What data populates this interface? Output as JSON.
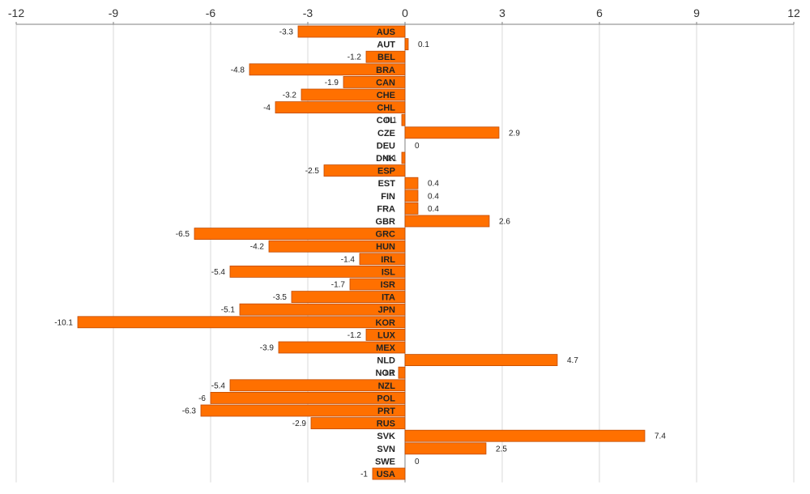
{
  "chart_data": {
    "type": "bar",
    "orientation": "horizontal",
    "xlim": [
      -12,
      12
    ],
    "ticks": [
      -12,
      -9,
      -6,
      -3,
      0,
      3,
      6,
      9,
      12
    ],
    "tick_labels": [
      "-12",
      "-9",
      "-6",
      "-3",
      "0",
      "3",
      "6",
      "9",
      "12"
    ],
    "axis_position": "top",
    "grid": true,
    "categories": [
      "AUS",
      "AUT",
      "BEL",
      "BRA",
      "CAN",
      "CHE",
      "CHL",
      "COL",
      "CZE",
      "DEU",
      "DNK",
      "ESP",
      "EST",
      "FIN",
      "FRA",
      "GBR",
      "GRC",
      "HUN",
      "IRL",
      "ISL",
      "ISR",
      "ITA",
      "JPN",
      "KOR",
      "LUX",
      "MEX",
      "NLD",
      "NOR",
      "NZL",
      "POL",
      "PRT",
      "RUS",
      "SVK",
      "SVN",
      "SWE",
      "USA"
    ],
    "values": [
      -3.3,
      0.1,
      -1.2,
      -4.8,
      -1.9,
      -3.2,
      -4,
      -0.1,
      2.9,
      0,
      -0.1,
      -2.5,
      0.4,
      0.4,
      0.4,
      2.6,
      -6.5,
      -4.2,
      -1.4,
      -5.4,
      -1.7,
      -3.5,
      -5.1,
      -10.1,
      -1.2,
      -3.9,
      4.7,
      -0.2,
      -5.4,
      -6,
      -6.3,
      -2.9,
      7.4,
      2.5,
      0,
      -1
    ],
    "value_labels": [
      "-3.3",
      "0.1",
      "-1.2",
      "-4.8",
      "-1.9",
      "-3.2",
      "-4",
      "-0.1",
      "2.9",
      "0",
      "-0.1",
      "-2.5",
      "0.4",
      "0.4",
      "0.4",
      "2.6",
      "-6.5",
      "-4.2",
      "-1.4",
      "-5.4",
      "-1.7",
      "-3.5",
      "-5.1",
      "-10.1",
      "-1.2",
      "-3.9",
      "4.7",
      "-0.2",
      "-5.4",
      "-6",
      "-6.3",
      "-2.9",
      "7.4",
      "2.5",
      "0",
      "-1"
    ],
    "title": "",
    "xlabel": "",
    "ylabel": ""
  },
  "colors": {
    "bar_fill": "#FF7000",
    "bar_stroke": "#C04A00",
    "grid": "#D9D9D9",
    "axis": "#808080"
  }
}
